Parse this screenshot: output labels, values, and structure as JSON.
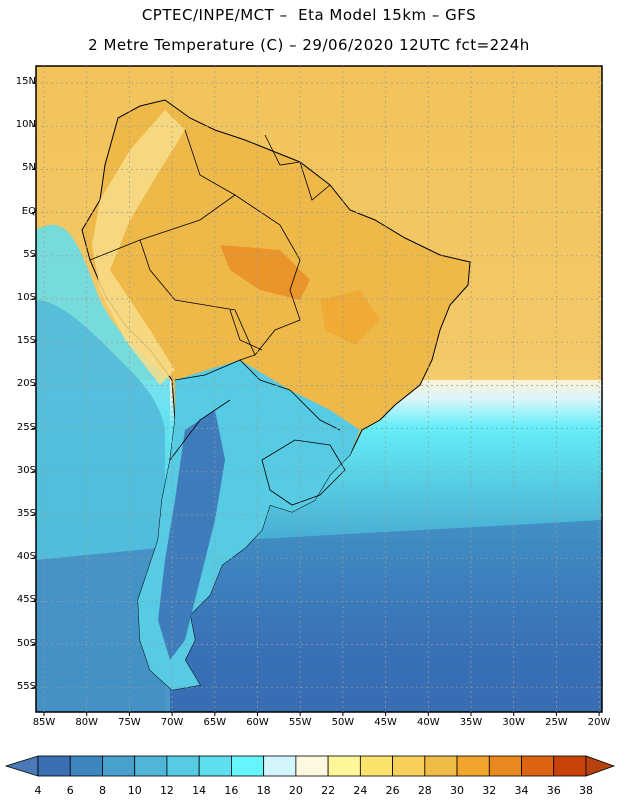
{
  "header": {
    "line1": "CPTEC/INPE/MCT –  Eta Model 15km – GFS",
    "line2": "2 Metre Temperature (C) – 29/06/2020 12UTC fct=224h"
  },
  "map": {
    "lat_labels": [
      "15N",
      "10N",
      "5N",
      "EQ",
      "5S",
      "10S",
      "15S",
      "20S",
      "25S",
      "30S",
      "35S",
      "40S",
      "45S",
      "50S",
      "55S"
    ],
    "lon_labels": [
      "85W",
      "80W",
      "75W",
      "70W",
      "65W",
      "60W",
      "55W",
      "50W",
      "45W",
      "40W",
      "35W",
      "30W",
      "25W",
      "20W"
    ]
  },
  "colorbar": {
    "values": [
      "4",
      "6",
      "8",
      "10",
      "12",
      "14",
      "16",
      "18",
      "20",
      "22",
      "24",
      "26",
      "28",
      "30",
      "32",
      "34",
      "36",
      "38"
    ],
    "colors": [
      "#3a6fb4",
      "#3d86c0",
      "#47a1cc",
      "#4fb6d8",
      "#57cbe3",
      "#5fdeee",
      "#66f5fb",
      "#d2f6fb",
      "#fdf8df",
      "#fdf79a",
      "#fae26c",
      "#f6d05a",
      "#efbc47",
      "#f1a52c",
      "#e8881f",
      "#dc6312",
      "#c8420a"
    ],
    "low_color": "#4a79b8",
    "high_color": "#b5420f"
  }
}
